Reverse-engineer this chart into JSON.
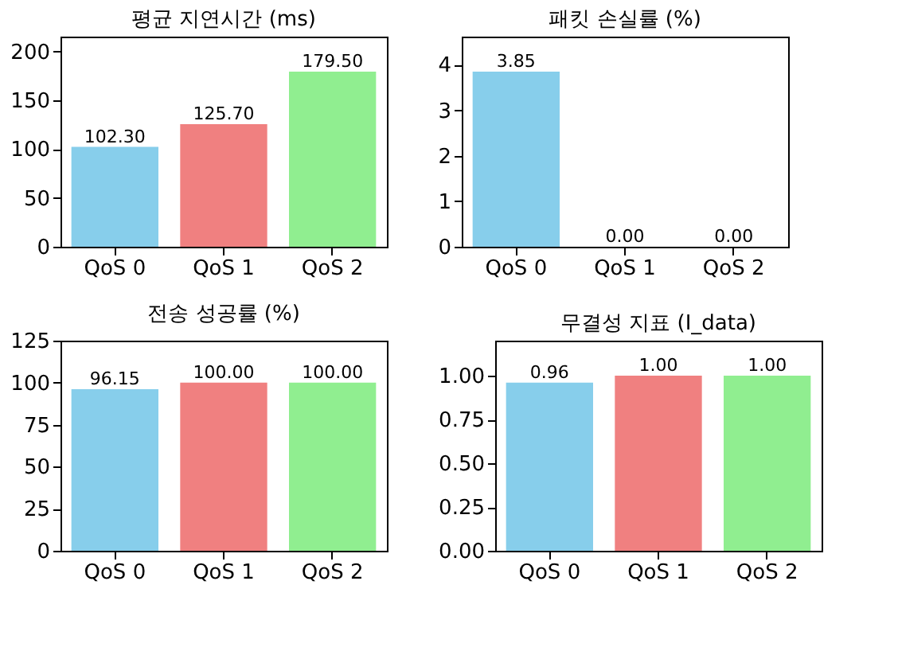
{
  "chart_data": [
    {
      "type": "bar",
      "title": "평균 지연시간 (ms)",
      "categories": [
        "QoS 0",
        "QoS 1",
        "QoS 2"
      ],
      "values": [
        102.3,
        125.7,
        179.5
      ],
      "colors": [
        "#87ceeb",
        "#f08080",
        "#90ee90"
      ],
      "value_labels": [
        "102.30",
        "125.70",
        "179.50"
      ],
      "ylim": [
        0,
        215.4
      ],
      "yticks": [
        0,
        50,
        100,
        150,
        200
      ],
      "grid": false,
      "legend": false
    },
    {
      "type": "bar",
      "title": "패킷 손실률 (%)",
      "categories": [
        "QoS 0",
        "QoS 1",
        "QoS 2"
      ],
      "values": [
        3.85,
        0,
        0
      ],
      "colors": [
        "#87ceeb",
        "#f08080",
        "#90ee90"
      ],
      "value_labels": [
        "3.85",
        "0.00",
        "0.00"
      ],
      "ylim": [
        0,
        4.62
      ],
      "yticks": [
        0,
        1,
        2,
        3,
        4
      ],
      "grid": false,
      "legend": false
    },
    {
      "type": "bar",
      "title": "전송 성공률 (%)",
      "categories": [
        "QoS 0",
        "QoS 1",
        "QoS 2"
      ],
      "values": [
        96.15,
        100,
        100
      ],
      "colors": [
        "#87ceeb",
        "#f08080",
        "#90ee90"
      ],
      "value_labels": [
        "96.15",
        "100.00",
        "100.00"
      ],
      "ylim": [
        0,
        125
      ],
      "yticks": [
        0,
        25,
        50,
        75,
        100,
        125
      ],
      "grid": false,
      "legend": false
    },
    {
      "type": "bar",
      "title": "무결성 지표 (I_data)",
      "categories": [
        "QoS 0",
        "QoS 1",
        "QoS 2"
      ],
      "values": [
        0.96,
        1,
        1
      ],
      "colors": [
        "#87ceeb",
        "#f08080",
        "#90ee90"
      ],
      "value_labels": [
        "0.96",
        "1.00",
        "1.00"
      ],
      "ylim": [
        0,
        1.2
      ],
      "yticks": [
        {
          "value": 0,
          "label": "0.00"
        },
        {
          "value": 0.25,
          "label": "0.25"
        },
        {
          "value": 0.5,
          "label": "0.50"
        },
        {
          "value": 0.75,
          "label": "0.75"
        },
        {
          "value": 1,
          "label": "1.00"
        }
      ],
      "grid": false,
      "legend": false
    }
  ]
}
